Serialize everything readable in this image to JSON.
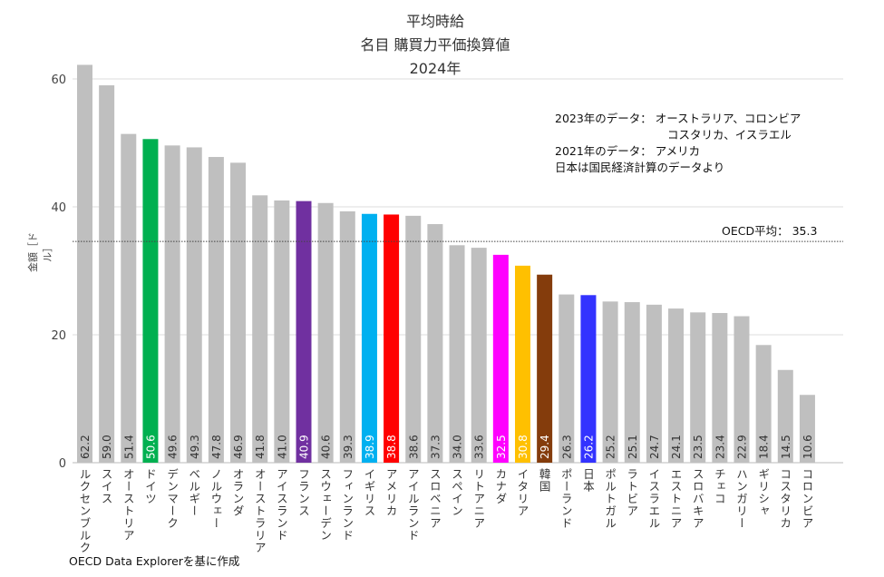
{
  "chart_data": {
    "type": "bar",
    "title": [
      "平均時給",
      "名目 購買力平価換算値",
      "2024年"
    ],
    "ylabel": "金額［ドル］",
    "xlabel": "",
    "ylim": [
      0,
      60
    ],
    "yticks": [
      0,
      20,
      40,
      60
    ],
    "grid": true,
    "categories": [
      "ルクセンブルク",
      "スイス",
      "オーストリア",
      "ドイツ",
      "デンマーク",
      "ベルギー",
      "ノルウェー",
      "オランダ",
      "オーストラリア",
      "アイスランド",
      "フランス",
      "スウェーデン",
      "フィンランド",
      "イギリス",
      "アメリカ",
      "アイルランド",
      "スロベニア",
      "スペイン",
      "リトアニア",
      "カナダ",
      "イタリア",
      "韓国",
      "ポーランド",
      "日本",
      "ポルトガル",
      "ラトビア",
      "イスラエル",
      "エストニア",
      "スロバキア",
      "チェコ",
      "ハンガリー",
      "ギリシャ",
      "コスタリカ",
      "コロンビア"
    ],
    "values": [
      62.2,
      59.0,
      51.4,
      50.6,
      49.6,
      49.3,
      47.8,
      46.9,
      41.8,
      41.0,
      40.9,
      40.6,
      39.3,
      38.9,
      38.8,
      38.6,
      37.3,
      34.0,
      33.6,
      32.5,
      30.8,
      29.4,
      26.3,
      26.2,
      25.2,
      25.1,
      24.7,
      24.1,
      23.5,
      23.4,
      22.9,
      18.4,
      14.5,
      10.6
    ],
    "value_labels": [
      "62.2",
      "59.0",
      "51.4",
      "50.6",
      "49.6",
      "49.3",
      "47.8",
      "46.9",
      "41.8",
      "41.0",
      "40.9",
      "40.6",
      "39.3",
      "38.9",
      "38.8",
      "38.6",
      "37.3",
      "34.0",
      "33.6",
      "32.5",
      "30.8",
      "29.4",
      "26.3",
      "26.2",
      "25.2",
      "25.1",
      "24.7",
      "24.1",
      "23.5",
      "23.4",
      "22.9",
      "18.4",
      "14.5",
      "10.6"
    ],
    "default_color": "#bfbfbf",
    "highlight_colors": {
      "ドイツ": "#00b050",
      "フランス": "#7030a0",
      "イギリス": "#00b0f0",
      "アメリカ": "#ff0000",
      "カナダ": "#ff00ff",
      "イタリア": "#ffc000",
      "韓国": "#843c0c",
      "日本": "#3333ff"
    },
    "reference_line": {
      "label": "OECD平均： 35.3",
      "value": 35.3
    },
    "annotations": [
      "2023年のデータ： オーストラリア、コロンビア",
      "コスタリカ、イスラエル",
      "2021年のデータ： アメリカ",
      "日本は国民経済計算のデータより"
    ],
    "source": "OECD Data Explorerを基に作成"
  }
}
